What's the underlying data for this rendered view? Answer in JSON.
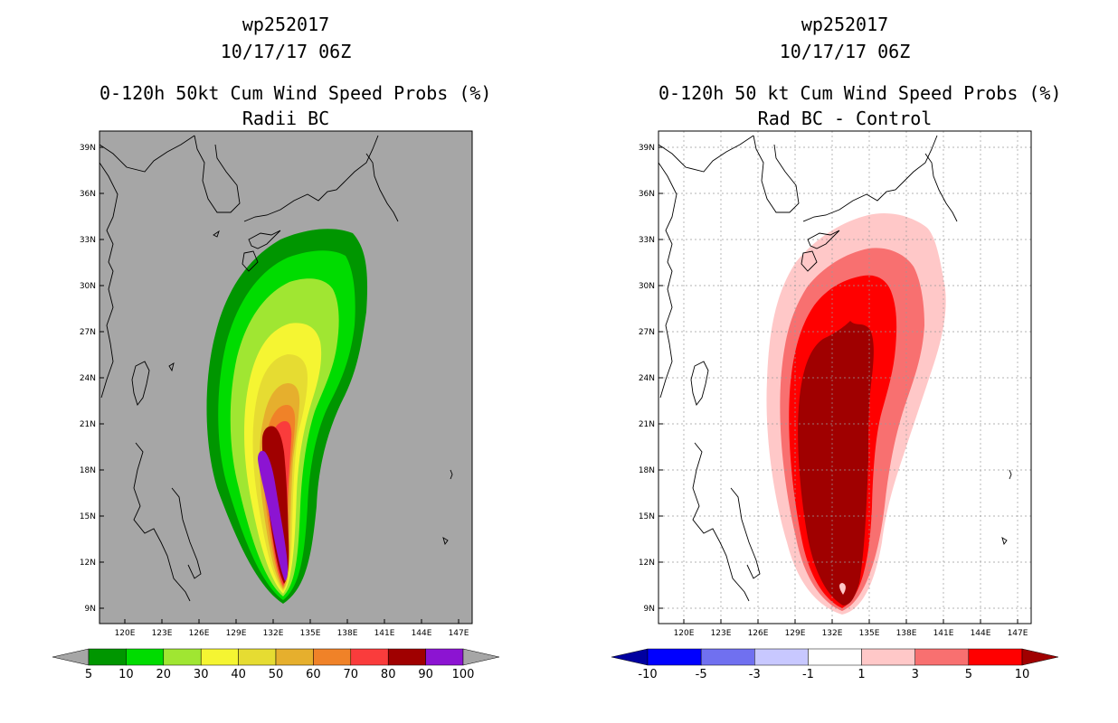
{
  "left": {
    "title1": "wp252017",
    "title2": "10/17/17 06Z",
    "title3": "0-120h 50kt Cum Wind Speed Probs (%)",
    "title4": "Radii BC",
    "colorbar": {
      "labels": [
        "5",
        "10",
        "20",
        "30",
        "40",
        "50",
        "60",
        "70",
        "80",
        "90",
        "100"
      ],
      "colors": [
        "#a6a6a6",
        "#009600",
        "#00dc00",
        "#a0e632",
        "#f5f532",
        "#e6dc32",
        "#e6af2d",
        "#f08228",
        "#fa3c3c",
        "#a00000",
        "#8c14d2",
        "#a6a6a6"
      ]
    }
  },
  "right": {
    "title1": "wp252017",
    "title2": "10/17/17 06Z",
    "title3": "0-120h 50 kt Cum Wind Speed Probs (%)",
    "title4": "Rad BC - Control",
    "colorbar": {
      "labels": [
        "-10",
        "-5",
        "-3",
        "-1",
        "1",
        "3",
        "5",
        "10"
      ],
      "colors": [
        "#0000a0",
        "#0000ff",
        "#7070f0",
        "#c8c8ff",
        "#ffffff",
        "#ffc8c8",
        "#f87070",
        "#ff0000",
        "#a00000"
      ]
    }
  },
  "axes": {
    "lat_labels": [
      "39N",
      "36N",
      "33N",
      "30N",
      "27N",
      "24N",
      "21N",
      "18N",
      "15N",
      "12N",
      "9N"
    ],
    "lon_labels": [
      "120E",
      "123E",
      "126E",
      "129E",
      "132E",
      "135E",
      "138E",
      "141E",
      "144E",
      "147E"
    ]
  }
}
